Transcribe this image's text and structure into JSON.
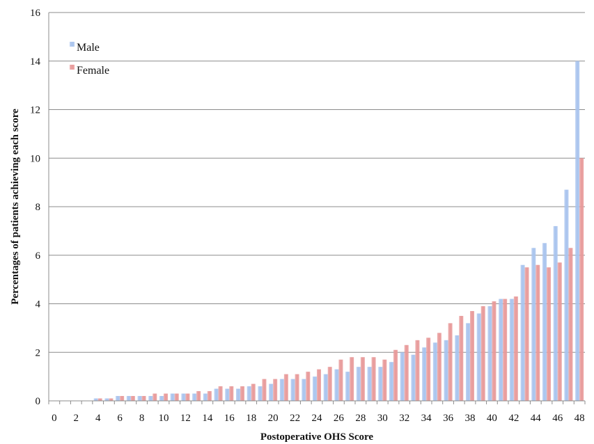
{
  "chart_data": {
    "type": "bar",
    "title": "",
    "xlabel": "Postoperative OHS Score",
    "ylabel": "Percentages of patients achieving each score",
    "ylim": [
      0,
      16
    ],
    "yticks": [
      0,
      2,
      4,
      6,
      8,
      10,
      12,
      14,
      16
    ],
    "xtick_labels": [
      "0",
      "2",
      "4",
      "6",
      "8",
      "10",
      "12",
      "14",
      "16",
      "18",
      "20",
      "22",
      "24",
      "26",
      "28",
      "30",
      "32",
      "34",
      "36",
      "38",
      "40",
      "42",
      "44",
      "46",
      "48"
    ],
    "grid": "horizontal",
    "legend": "top-left",
    "x": [
      0,
      1,
      2,
      3,
      4,
      5,
      6,
      7,
      8,
      9,
      10,
      11,
      12,
      13,
      14,
      15,
      16,
      17,
      18,
      19,
      20,
      21,
      22,
      23,
      24,
      25,
      26,
      27,
      28,
      29,
      30,
      31,
      32,
      33,
      34,
      35,
      36,
      37,
      38,
      39,
      40,
      41,
      42,
      43,
      44,
      45,
      46,
      47,
      48
    ],
    "series": [
      {
        "name": "Male",
        "color": "#a9c4ee",
        "values": [
          0,
          0,
          0,
          0,
          0.1,
          0.1,
          0.2,
          0.2,
          0.2,
          0.2,
          0.2,
          0.3,
          0.3,
          0.3,
          0.3,
          0.5,
          0.5,
          0.5,
          0.6,
          0.6,
          0.7,
          0.9,
          0.9,
          0.9,
          1.0,
          1.1,
          1.3,
          1.2,
          1.4,
          1.4,
          1.4,
          1.6,
          2.0,
          1.9,
          2.2,
          2.4,
          2.5,
          2.7,
          3.2,
          3.6,
          3.9,
          4.2,
          4.2,
          5.6,
          6.3,
          6.5,
          7.2,
          8.7,
          14.0
        ]
      },
      {
        "name": "Female",
        "color": "#e89a9a",
        "values": [
          0,
          0,
          0,
          0,
          0.1,
          0.1,
          0.2,
          0.2,
          0.2,
          0.3,
          0.3,
          0.3,
          0.3,
          0.4,
          0.4,
          0.6,
          0.6,
          0.6,
          0.7,
          0.9,
          0.9,
          1.1,
          1.1,
          1.2,
          1.3,
          1.4,
          1.7,
          1.8,
          1.8,
          1.8,
          1.7,
          2.1,
          2.3,
          2.5,
          2.6,
          2.8,
          3.2,
          3.5,
          3.7,
          3.9,
          4.1,
          4.2,
          4.3,
          5.5,
          5.6,
          5.5,
          5.7,
          6.3,
          10.0
        ]
      }
    ]
  }
}
